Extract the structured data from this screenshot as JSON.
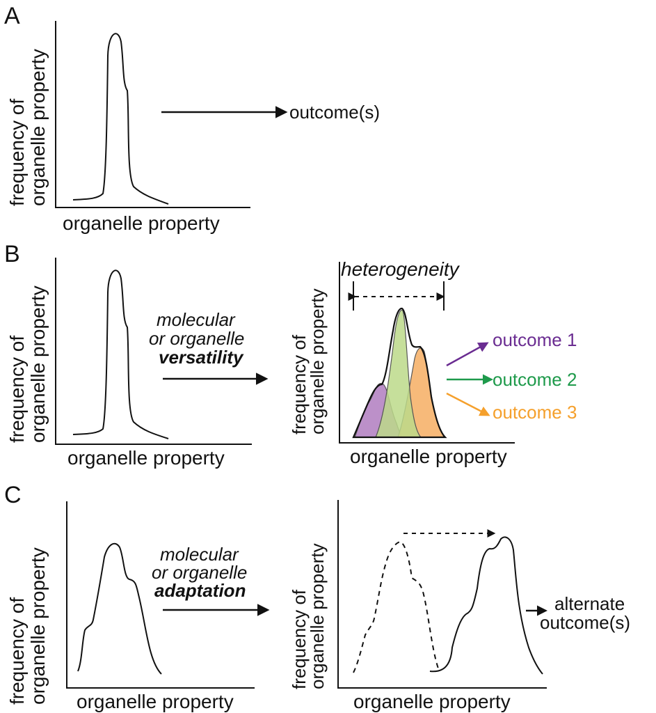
{
  "panels": {
    "a": {
      "letter": "A",
      "ylabel_line1": "frequency of",
      "ylabel_line2": "organelle property",
      "xlabel": "organelle property",
      "outcome": "outcome(s)"
    },
    "b": {
      "letter": "B",
      "ylabel_line1": "frequency of",
      "ylabel_line2": "organelle property",
      "xlabel": "organelle property",
      "arrow_line1": "molecular",
      "arrow_line2": "or organelle",
      "arrow_line3": "versatility",
      "right_ylabel_line1": "frequency of",
      "right_ylabel_line2": "organelle property",
      "right_xlabel": "organelle property",
      "heterogeneity": "heterogeneity",
      "outcomes": [
        {
          "label": "outcome 1",
          "color": "#6a2c91"
        },
        {
          "label": "outcome 2",
          "color": "#1e9a4b"
        },
        {
          "label": "outcome 3",
          "color": "#f5a02c"
        }
      ],
      "fill_colors": {
        "purple": "#b07cc0",
        "green": "#bcd98a",
        "orange": "#f6b26b"
      }
    },
    "c": {
      "letter": "C",
      "ylabel_line1": "frequency of",
      "ylabel_line2": "organelle property",
      "xlabel": "organelle property",
      "arrow_line1": "molecular",
      "arrow_line2": "or organelle",
      "arrow_line3": "adaptation",
      "right_ylabel_line1": "frequency of",
      "right_ylabel_line2": "organelle property",
      "right_xlabel": "organelle property",
      "outcome_line1": "alternate",
      "outcome_line2": "outcome(s)"
    }
  }
}
